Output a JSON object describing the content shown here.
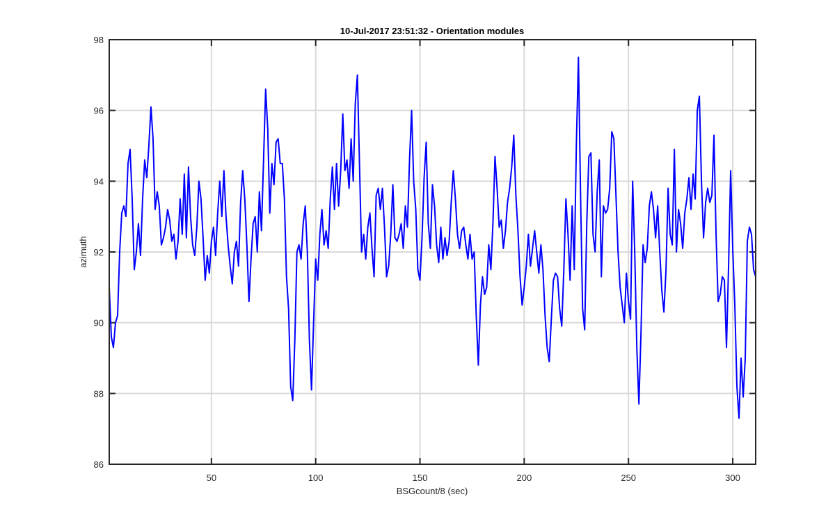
{
  "chart_data": {
    "type": "line",
    "title": "10-Jul-2017 23:51:32 - Orientation modules",
    "xlabel": "BSGcount/8 (sec)",
    "ylabel": "azimuth",
    "xlim": [
      1,
      311
    ],
    "ylim": [
      86,
      98
    ],
    "xticks": [
      50,
      100,
      150,
      200,
      250,
      300
    ],
    "yticks": [
      86,
      88,
      90,
      92,
      94,
      96,
      98
    ],
    "grid": true,
    "x": [
      1,
      2,
      3,
      4,
      5,
      6,
      7,
      8,
      9,
      10,
      11,
      12,
      13,
      14,
      15,
      16,
      17,
      18,
      19,
      20,
      21,
      22,
      23,
      24,
      25,
      26,
      27,
      28,
      29,
      30,
      31,
      32,
      33,
      34,
      35,
      36,
      37,
      38,
      39,
      40,
      41,
      42,
      43,
      44,
      45,
      46,
      47,
      48,
      49,
      50,
      51,
      52,
      53,
      54,
      55,
      56,
      57,
      58,
      59,
      60,
      61,
      62,
      63,
      64,
      65,
      66,
      67,
      68,
      69,
      70,
      71,
      72,
      73,
      74,
      75,
      76,
      77,
      78,
      79,
      80,
      81,
      82,
      83,
      84,
      85,
      86,
      87,
      88,
      89,
      90,
      91,
      92,
      93,
      94,
      95,
      96,
      97,
      98,
      99,
      100,
      101,
      102,
      103,
      104,
      105,
      106,
      107,
      108,
      109,
      110,
      111,
      112,
      113,
      114,
      115,
      116,
      117,
      118,
      119,
      120,
      121,
      122,
      123,
      124,
      125,
      126,
      127,
      128,
      129,
      130,
      131,
      132,
      133,
      134,
      135,
      136,
      137,
      138,
      139,
      140,
      141,
      142,
      143,
      144,
      145,
      146,
      147,
      148,
      149,
      150,
      151,
      152,
      153,
      154,
      155,
      156,
      157,
      158,
      159,
      160,
      161,
      162,
      163,
      164,
      165,
      166,
      167,
      168,
      169,
      170,
      171,
      172,
      173,
      174,
      175,
      176,
      177,
      178,
      179,
      180,
      181,
      182,
      183,
      184,
      185,
      186,
      187,
      188,
      189,
      190,
      191,
      192,
      193,
      194,
      195,
      196,
      197,
      198,
      199,
      200,
      201,
      202,
      203,
      204,
      205,
      206,
      207,
      208,
      209,
      210,
      211,
      212,
      213,
      214,
      215,
      216,
      217,
      218,
      219,
      220,
      221,
      222,
      223,
      224,
      225,
      226,
      227,
      228,
      229,
      230,
      231,
      232,
      233,
      234,
      235,
      236,
      237,
      238,
      239,
      240,
      241,
      242,
      243,
      244,
      245,
      246,
      247,
      248,
      249,
      250,
      251,
      252,
      253,
      254,
      255,
      256,
      257,
      258,
      259,
      260,
      261,
      262,
      263,
      264,
      265,
      266,
      267,
      268,
      269,
      270,
      271,
      272,
      273,
      274,
      275,
      276,
      277,
      278,
      279,
      280,
      281,
      282,
      283,
      284,
      285,
      286,
      287,
      288,
      289,
      290,
      291,
      292,
      293,
      294,
      295,
      296,
      297,
      298,
      299,
      300,
      301,
      302,
      303,
      304,
      305,
      306,
      307,
      308,
      309,
      310,
      311
    ],
    "series": [
      {
        "name": "azimuth",
        "color": "#0000ff",
        "values": [
          91,
          89.6,
          89.3,
          90,
          90.2,
          92,
          93.1,
          93.3,
          93,
          94.5,
          94.9,
          93.5,
          91.5,
          92,
          92.8,
          91.9,
          93.5,
          94.6,
          94.1,
          95,
          96.1,
          95.2,
          93.2,
          93.7,
          93.3,
          92.2,
          92.4,
          92.7,
          93.2,
          92.9,
          92.3,
          92.5,
          91.8,
          92.3,
          93.5,
          92.5,
          94.2,
          92.4,
          94.4,
          93,
          92.2,
          91.9,
          92.7,
          94,
          93.5,
          92.4,
          91.2,
          91.9,
          91.4,
          92.3,
          92.7,
          91.9,
          93.1,
          94,
          93,
          94.3,
          93,
          92.2,
          91.6,
          91.1,
          92,
          92.3,
          91.6,
          93.4,
          94.3,
          93.5,
          92.2,
          90.6,
          91.8,
          92.8,
          93,
          92,
          93.7,
          92.6,
          94.6,
          96.6,
          95.5,
          93.1,
          94.5,
          93.9,
          95.1,
          95.2,
          94.5,
          94.5,
          93.5,
          91.3,
          90.4,
          88.2,
          87.8,
          89.5,
          92,
          92.2,
          91.8,
          92.8,
          93.3,
          92,
          89.5,
          88.1,
          90,
          91.8,
          91.2,
          92.5,
          93.2,
          92.2,
          92.6,
          92.1,
          93.5,
          94.4,
          93.2,
          94.5,
          93.3,
          94.3,
          95.9,
          94.3,
          94.6,
          93.8,
          95.2,
          94,
          96.2,
          97,
          94.5,
          92,
          92.5,
          91.8,
          92.7,
          93.1,
          92.1,
          91.3,
          93.6,
          93.8,
          93.2,
          93.8,
          92.7,
          91.3,
          91.6,
          92.5,
          93.9,
          92.4,
          92.3,
          92.5,
          92.8,
          92.1,
          93.3,
          92.7,
          94.6,
          96,
          94,
          93.2,
          91.5,
          91.2,
          92.4,
          94.1,
          95.1,
          92.8,
          92.1,
          93.9,
          93.3,
          92.2,
          91.7,
          92.7,
          91.8,
          92.4,
          91.9,
          92.3,
          93.4,
          94.3,
          93.5,
          92.5,
          92.1,
          92.6,
          92.7,
          92.2,
          91.8,
          92.5,
          91.8,
          92,
          90.2,
          88.8,
          90.5,
          91.3,
          90.8,
          91,
          92.2,
          91.5,
          92.8,
          94.7,
          93.8,
          92.7,
          92.9,
          92.1,
          92.6,
          93.4,
          93.8,
          94.4,
          95.3,
          93.6,
          92.6,
          91.3,
          90.5,
          91,
          91.6,
          92.5,
          91.6,
          92.1,
          92.6,
          92,
          91.4,
          92.2,
          91.5,
          90.2,
          89.3,
          88.9,
          90.1,
          91.2,
          91.4,
          91.3,
          90.4,
          89.9,
          91.5,
          93.5,
          92.5,
          91.2,
          93.3,
          91.5,
          95,
          97.5,
          93.7,
          90.4,
          89.8,
          92.8,
          94.7,
          94.8,
          92.5,
          92,
          93.7,
          94.6,
          91.3,
          93.3,
          93.1,
          93.2,
          93.8,
          95.4,
          95.2,
          93.6,
          92,
          91,
          90.5,
          90,
          91.4,
          90.6,
          90.1,
          94,
          92,
          89.3,
          87.7,
          89.7,
          92.2,
          91.7,
          92.1,
          93.3,
          93.7,
          93.2,
          92.4,
          93.3,
          92,
          90.9,
          90.3,
          91.5,
          93.8,
          92.5,
          92.2,
          94.9,
          92,
          93.2,
          92.8,
          92.1,
          93.1,
          93.5,
          94.1,
          93.2,
          94.2,
          93.5,
          96,
          96.4,
          94,
          92.4,
          93.4,
          93.8,
          93.4,
          93.6,
          95.3,
          92.5,
          90.6,
          90.8,
          91.3,
          91.2,
          89.3,
          91.6,
          94.3,
          92.1,
          90.5,
          88.2,
          87.3,
          89,
          87.9,
          89,
          92.3,
          92.7,
          92.5,
          91.5,
          91.3
        ]
      }
    ]
  }
}
